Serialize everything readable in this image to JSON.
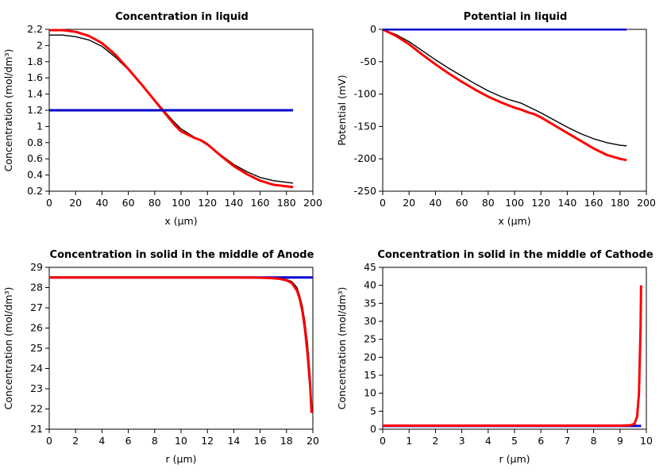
{
  "app": {
    "background": "#ffffff"
  },
  "colors": {
    "frame": "#000000",
    "black_series": "#000000",
    "red_series": "#ff0000",
    "blue_series": "#0000cd"
  },
  "chart_data": [
    {
      "id": "concentration-liquid",
      "type": "line",
      "title": "Concentration in liquid",
      "xlabel": "x (µm)",
      "ylabel": "Concentration (mol/dm³)",
      "xlim": [
        0,
        200
      ],
      "ylim": [
        0.2,
        2.2
      ],
      "xticks": [
        0,
        20,
        40,
        60,
        80,
        100,
        120,
        140,
        160,
        180,
        200
      ],
      "yticks": [
        0.2,
        0.4,
        0.6,
        0.8,
        1,
        1.2,
        1.4,
        1.6,
        1.8,
        2,
        2.2
      ],
      "grid": false,
      "legend": "none",
      "series": [
        {
          "name": "black",
          "color": "#000000",
          "width": 1.4,
          "x": [
            0,
            10,
            20,
            30,
            40,
            50,
            60,
            70,
            80,
            90,
            95,
            100,
            105,
            110,
            115,
            120,
            130,
            140,
            150,
            160,
            170,
            180,
            185
          ],
          "y": [
            2.13,
            2.13,
            2.11,
            2.07,
            1.99,
            1.86,
            1.7,
            1.52,
            1.33,
            1.14,
            1.05,
            0.97,
            0.92,
            0.87,
            0.82,
            0.77,
            0.65,
            0.53,
            0.44,
            0.37,
            0.33,
            0.31,
            0.3
          ]
        },
        {
          "name": "red",
          "color": "#ff0000",
          "width": 3,
          "x": [
            0,
            10,
            20,
            30,
            40,
            50,
            60,
            70,
            80,
            90,
            95,
            100,
            105,
            110,
            115,
            120,
            130,
            140,
            150,
            160,
            170,
            180,
            185
          ],
          "y": [
            2.19,
            2.19,
            2.17,
            2.12,
            2.03,
            1.89,
            1.71,
            1.52,
            1.32,
            1.12,
            1.02,
            0.94,
            0.9,
            0.86,
            0.83,
            0.78,
            0.64,
            0.51,
            0.41,
            0.33,
            0.28,
            0.26,
            0.25
          ]
        },
        {
          "name": "blue",
          "color": "#0000cd",
          "width": 3,
          "x": [
            0,
            185
          ],
          "y": [
            1.2,
            1.2
          ]
        }
      ]
    },
    {
      "id": "potential-liquid",
      "type": "line",
      "title": "Potential in liquid",
      "xlabel": "x (µm)",
      "ylabel": "Potential (mV)",
      "xlim": [
        0,
        200
      ],
      "ylim": [
        -250,
        0
      ],
      "xticks": [
        0,
        20,
        40,
        60,
        80,
        100,
        120,
        140,
        160,
        180,
        200
      ],
      "yticks": [
        0,
        -50,
        -100,
        -150,
        -200,
        -250
      ],
      "grid": false,
      "legend": "none",
      "series": [
        {
          "name": "black",
          "color": "#000000",
          "width": 1.4,
          "x": [
            0,
            10,
            20,
            30,
            40,
            50,
            60,
            70,
            80,
            90,
            95,
            100,
            105,
            110,
            115,
            120,
            130,
            140,
            150,
            160,
            170,
            180,
            185
          ],
          "y": [
            0,
            -8,
            -19,
            -33,
            -47,
            -60,
            -72,
            -84,
            -95,
            -104,
            -108,
            -111,
            -114,
            -119,
            -124,
            -129,
            -140,
            -151,
            -161,
            -169,
            -175,
            -179,
            -180
          ]
        },
        {
          "name": "red",
          "color": "#ff0000",
          "width": 3,
          "x": [
            0,
            10,
            20,
            30,
            40,
            50,
            60,
            70,
            80,
            90,
            95,
            100,
            105,
            110,
            115,
            120,
            130,
            140,
            150,
            160,
            170,
            180,
            185
          ],
          "y": [
            0,
            -10,
            -23,
            -39,
            -54,
            -68,
            -81,
            -93,
            -104,
            -113,
            -117,
            -121,
            -124,
            -128,
            -131,
            -136,
            -148,
            -160,
            -172,
            -184,
            -194,
            -200,
            -202
          ]
        },
        {
          "name": "blue",
          "color": "#0000cd",
          "width": 3,
          "x": [
            0,
            185
          ],
          "y": [
            0,
            0
          ]
        }
      ]
    },
    {
      "id": "concentration-solid-anode",
      "type": "line",
      "title": "Concentration in solid in the middle of Anode",
      "xlabel": "r (µm)",
      "ylabel": "Concentration (mol/dm³)",
      "xlim": [
        0,
        20
      ],
      "ylim": [
        21,
        29
      ],
      "xticks": [
        0,
        2,
        4,
        6,
        8,
        10,
        12,
        14,
        16,
        18,
        20
      ],
      "yticks": [
        21,
        22,
        23,
        24,
        25,
        26,
        27,
        28,
        29
      ],
      "grid": false,
      "legend": "none",
      "series": [
        {
          "name": "blue",
          "color": "#0000cd",
          "width": 3,
          "x": [
            0,
            20
          ],
          "y": [
            28.5,
            28.5
          ]
        },
        {
          "name": "black",
          "color": "#000000",
          "width": 1.4,
          "x": [
            0,
            5,
            10,
            14,
            16,
            17,
            17.5,
            18,
            18.4,
            18.8,
            19.0,
            19.2,
            19.4,
            19.6,
            19.8,
            19.9
          ],
          "y": [
            28.5,
            28.5,
            28.5,
            28.5,
            28.49,
            28.47,
            28.45,
            28.4,
            28.3,
            28.0,
            27.6,
            27.1,
            26.3,
            25.2,
            23.6,
            22.2
          ]
        },
        {
          "name": "red",
          "color": "#ff0000",
          "width": 3,
          "x": [
            0,
            5,
            10,
            14,
            16,
            17,
            17.5,
            18,
            18.4,
            18.8,
            19.0,
            19.2,
            19.4,
            19.6,
            19.8,
            19.9
          ],
          "y": [
            28.5,
            28.5,
            28.5,
            28.5,
            28.49,
            28.46,
            28.43,
            28.36,
            28.22,
            27.85,
            27.45,
            26.85,
            25.95,
            24.7,
            23.1,
            21.8
          ]
        }
      ]
    },
    {
      "id": "concentration-solid-cathode",
      "type": "line",
      "title": "Concentration in solid in the middle of Cathode",
      "xlabel": "r (µm)",
      "ylabel": "Concentration (mol/dm³)",
      "xlim": [
        0,
        10
      ],
      "ylim": [
        0,
        45
      ],
      "xticks": [
        0,
        1,
        2,
        3,
        4,
        5,
        6,
        7,
        8,
        9,
        10
      ],
      "yticks": [
        0,
        5,
        10,
        15,
        20,
        25,
        30,
        35,
        40,
        45
      ],
      "grid": false,
      "legend": "none",
      "series": [
        {
          "name": "blue",
          "color": "#0000cd",
          "width": 3,
          "x": [
            0,
            9.8
          ],
          "y": [
            0.9,
            0.9
          ]
        },
        {
          "name": "black",
          "color": "#000000",
          "width": 1.4,
          "x": [
            0,
            2,
            4,
            6,
            8,
            9,
            9.4,
            9.55,
            9.65,
            9.72,
            9.78,
            9.8
          ],
          "y": [
            1,
            1,
            1,
            1,
            1,
            1,
            1.1,
            1.5,
            3.5,
            10,
            28,
            39.5
          ]
        },
        {
          "name": "red",
          "color": "#ff0000",
          "width": 3,
          "x": [
            0,
            2,
            4,
            6,
            8,
            9,
            9.4,
            9.55,
            9.65,
            9.72,
            9.78,
            9.8
          ],
          "y": [
            1,
            1,
            1,
            1,
            1,
            1,
            1.1,
            1.5,
            3.5,
            10,
            28,
            40
          ]
        }
      ]
    }
  ]
}
